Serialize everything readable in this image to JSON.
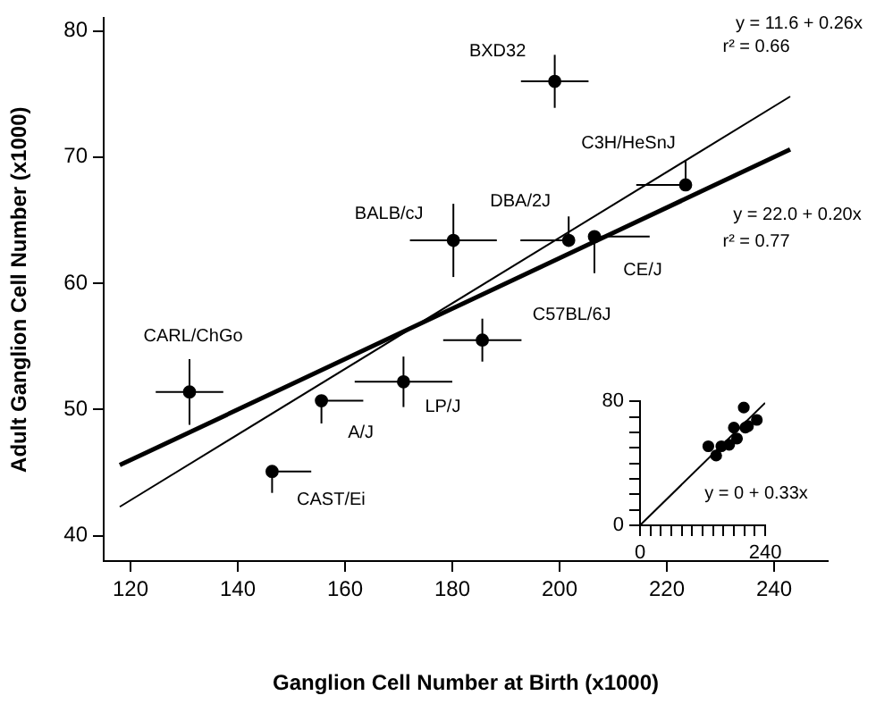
{
  "chart_data": [
    {
      "type": "scatter",
      "xlabel": "Ganglion Cell Number at Birth (x1000)",
      "ylabel": "Adult Ganglion Cell Number (x1000)",
      "xlim": [
        115,
        250
      ],
      "ylim": [
        38,
        81
      ],
      "xticks": [
        120,
        140,
        160,
        180,
        200,
        220,
        240
      ],
      "yticks": [
        40,
        50,
        60,
        70,
        80
      ],
      "grid": false,
      "legend": false,
      "series": [
        {
          "type": "scatter",
          "marker": "circle",
          "color": "#000000",
          "x": [
            199.1,
            223.5,
            180.2,
            201.7,
            206.5,
            185.6,
            131.0,
            155.6,
            170.9,
            146.4
          ],
          "values": [
            76.0,
            67.8,
            63.4,
            63.4,
            63.7,
            55.5,
            51.4,
            50.7,
            52.2,
            45.1
          ],
          "xerrors": [
            6.3,
            [
              214.3,
              223.5
            ],
            8.1,
            [
              192.7,
              201.7
            ],
            [
              206.5,
              216.8
            ],
            7.3,
            6.3,
            [
              155.6,
              163.4
            ],
            9.1,
            [
              146.4,
              153.7
            ]
          ],
          "errors": [
            2.1,
            [
              67.8,
              69.7
            ],
            2.9,
            [
              63.4,
              65.3
            ],
            [
              60.8,
              63.7
            ],
            1.7,
            2.6,
            [
              48.9,
              50.7
            ],
            2.0,
            [
              43.4,
              45.1
            ]
          ]
        },
        {
          "type": "line",
          "marker": "none",
          "color": "#000000",
          "x": [
            118,
            243
          ],
          "values": [
            42.3,
            74.8
          ]
        },
        {
          "type": "line",
          "marker": "none",
          "color": "#000000",
          "x": [
            118,
            243
          ],
          "values": [
            45.6,
            70.6
          ]
        }
      ],
      "annotations": [
        {
          "text": "BXD32",
          "x": 199.1,
          "y": 76.0
        },
        {
          "text": "C3H/HeSnJ",
          "x": 223.5,
          "y": 67.8
        },
        {
          "text": "BALB/cJ",
          "x": 180.2,
          "y": 63.4
        },
        {
          "text": "DBA/2J",
          "x": 201.7,
          "y": 63.4
        },
        {
          "text": "CE/J",
          "x": 206.5,
          "y": 63.7
        },
        {
          "text": "C57BL/6J",
          "x": 185.6,
          "y": 55.5
        },
        {
          "text": "CARL/ChGo",
          "x": 131.0,
          "y": 51.4
        },
        {
          "text": "A/J",
          "x": 155.6,
          "y": 50.7
        },
        {
          "text": "LP/J",
          "x": 170.9,
          "y": 52.2
        },
        {
          "text": "CAST/Ei",
          "x": 146.4,
          "y": 45.1
        },
        "y = 11.6 + 0.26x",
        "r² = 0.66",
        "y = 22.0 + 0.20x",
        "r² = 0.77"
      ]
    },
    {
      "type": "scatter",
      "xlim": [
        0,
        240
      ],
      "ylim": [
        0,
        80
      ],
      "xticks": [
        0,
        {
          "value": 20,
          "label": null
        },
        {
          "value": 40,
          "label": null
        },
        {
          "value": 60,
          "label": null
        },
        {
          "value": 80,
          "label": null
        },
        {
          "value": 100,
          "label": null
        },
        {
          "value": 120,
          "label": null
        },
        {
          "value": 140,
          "label": null
        },
        {
          "value": 160,
          "label": null
        },
        {
          "value": 180,
          "label": null
        },
        {
          "value": 200,
          "label": null
        },
        {
          "value": 220,
          "label": null
        },
        240
      ],
      "yticks": [
        0,
        {
          "value": 10,
          "label": null
        },
        {
          "value": 20,
          "label": null
        },
        {
          "value": 30,
          "label": null
        },
        {
          "value": 40,
          "label": null
        },
        {
          "value": 50,
          "label": null
        },
        {
          "value": 60,
          "label": null
        },
        {
          "value": 70,
          "label": null
        },
        80
      ],
      "grid": false,
      "legend": false,
      "series": [
        {
          "type": "scatter",
          "marker": "circle",
          "color": "#000000",
          "x": [
            199,
            224,
            180,
            202,
            207,
            186,
            131,
            156,
            171,
            146
          ],
          "values": [
            76,
            68,
            63,
            63,
            64,
            56,
            51,
            51,
            52,
            45
          ]
        },
        {
          "type": "line",
          "marker": "none",
          "color": "#000000",
          "x": [
            0,
            240
          ],
          "values": [
            0,
            79
          ]
        }
      ],
      "annotations": [
        "y = 0 + 0.33x"
      ]
    }
  ]
}
